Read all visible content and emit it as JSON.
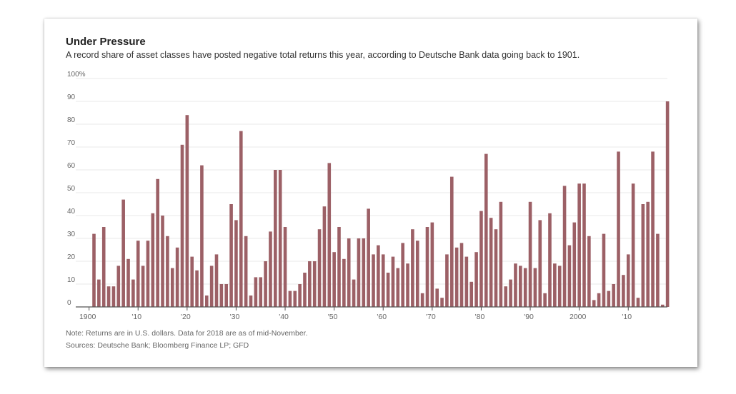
{
  "header": {
    "title": "Under Pressure",
    "subtitle": "A record share of asset classes have posted negative total returns this year, according to Deutsche Bank data going back to 1901."
  },
  "footer": {
    "note": "Note: Returns are in U.S. dollars. Data for 2018 are as of mid-November.",
    "sources": "Sources: Deutsche Bank; Bloomberg Finance LP; GFD"
  },
  "colors": {
    "bar": "#9c6066",
    "grid": "#e8e8e8",
    "axis": "#555555",
    "tick_text": "#666666"
  },
  "chart_data": {
    "type": "bar",
    "title": "Under Pressure",
    "subtitle": "A record share of asset classes have posted negative total returns this year, according to Deutsche Bank data going back to 1901.",
    "xlabel": "",
    "ylabel": "",
    "ylim": [
      0,
      100
    ],
    "y_ticks": [
      0,
      10,
      20,
      30,
      40,
      50,
      60,
      70,
      80,
      90,
      100
    ],
    "y_tick_labels": [
      "0",
      "10",
      "20",
      "30",
      "40",
      "50",
      "60",
      "70",
      "80",
      "90",
      "100%"
    ],
    "x_ticks": [
      1900,
      1910,
      1920,
      1930,
      1940,
      1950,
      1960,
      1970,
      1980,
      1990,
      2000,
      2010
    ],
    "x_tick_labels": [
      "1900",
      "'10",
      "'20",
      "'30",
      "'40",
      "'50",
      "'60",
      "'70",
      "'80",
      "'90",
      "2000",
      "'10"
    ],
    "grid": true,
    "x_start": 1901,
    "x_end": 2018,
    "values": [
      32,
      12,
      35,
      9,
      9,
      18,
      47,
      21,
      12,
      29,
      18,
      29,
      41,
      56,
      40,
      31,
      17,
      26,
      71,
      84,
      22,
      16,
      62,
      5,
      18,
      23,
      10,
      10,
      45,
      38,
      77,
      31,
      5,
      13,
      13,
      20,
      33,
      60,
      60,
      35,
      7,
      7,
      10,
      15,
      20,
      20,
      34,
      44,
      63,
      24,
      35,
      21,
      30,
      12,
      30,
      30,
      43,
      23,
      27,
      23,
      15,
      22,
      17,
      28,
      19,
      34,
      29,
      6,
      35,
      37,
      8,
      4,
      23,
      57,
      26,
      28,
      22,
      11,
      24,
      42,
      67,
      39,
      34,
      46,
      9,
      12,
      19,
      18,
      17,
      46,
      17,
      38,
      6,
      41,
      19,
      18,
      53,
      27,
      37,
      54,
      54,
      31,
      3,
      6,
      32,
      7,
      10,
      68,
      14,
      23,
      54,
      4,
      45,
      46,
      68,
      32,
      1,
      90
    ]
  }
}
